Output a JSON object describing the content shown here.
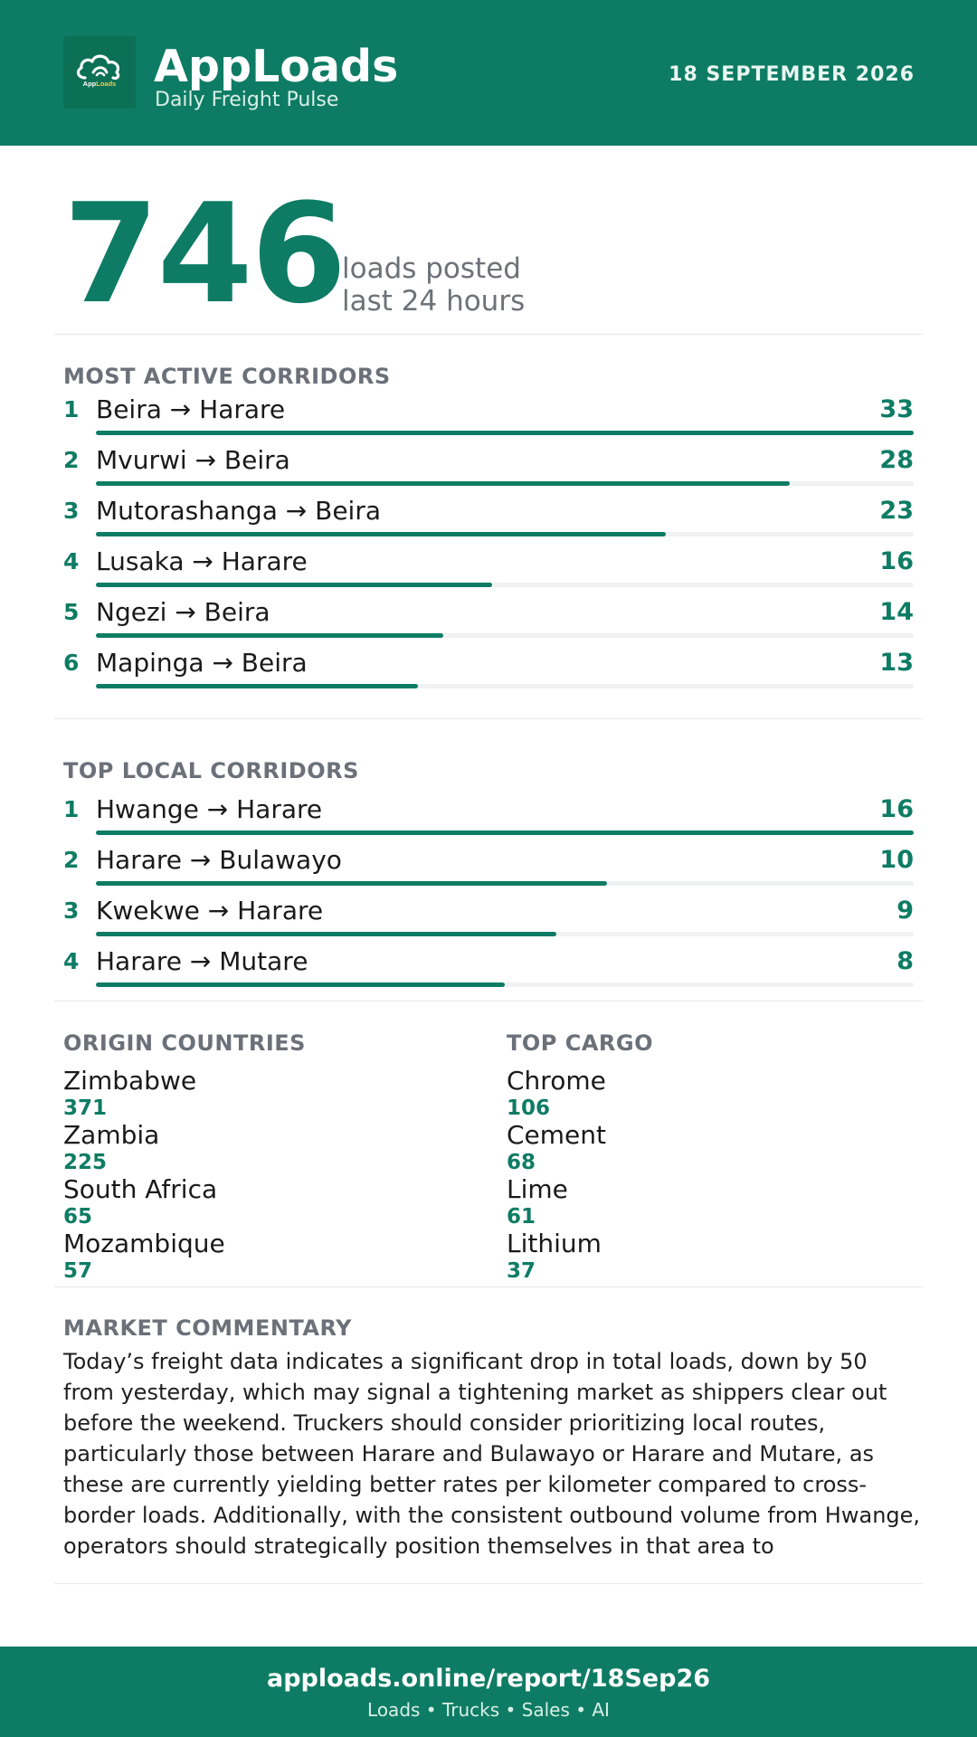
{
  "header": {
    "brand": "AppLoads",
    "tagline": "Daily Freight Pulse",
    "date": "18 SEPTEMBER 2026",
    "logo_text": "AppLoads"
  },
  "hero": {
    "value": "746",
    "label_line1": "loads posted",
    "label_line2": "last 24 hours"
  },
  "most_active": {
    "title": "MOST ACTIVE CORRIDORS",
    "max": 33,
    "items": [
      {
        "rank": "1",
        "route": "Beira → Harare",
        "value": 33
      },
      {
        "rank": "2",
        "route": "Mvurwi → Beira",
        "value": 28
      },
      {
        "rank": "3",
        "route": "Mutorashanga → Beira",
        "value": 23
      },
      {
        "rank": "4",
        "route": "Lusaka → Harare",
        "value": 16
      },
      {
        "rank": "5",
        "route": "Ngezi → Beira",
        "value": 14
      },
      {
        "rank": "6",
        "route": "Mapinga → Beira",
        "value": 13
      }
    ]
  },
  "top_local": {
    "title": "TOP LOCAL CORRIDORS",
    "max": 16,
    "items": [
      {
        "rank": "1",
        "route": "Hwange → Harare",
        "value": 16
      },
      {
        "rank": "2",
        "route": "Harare → Bulawayo",
        "value": 10
      },
      {
        "rank": "3",
        "route": "Kwekwe → Harare",
        "value": 9
      },
      {
        "rank": "4",
        "route": "Harare → Mutare",
        "value": 8
      }
    ]
  },
  "origin_countries": {
    "title": "ORIGIN COUNTRIES",
    "items": [
      {
        "name": "Zimbabwe",
        "value": "371"
      },
      {
        "name": "Zambia",
        "value": "225"
      },
      {
        "name": "South Africa",
        "value": "65"
      },
      {
        "name": "Mozambique",
        "value": "57"
      }
    ]
  },
  "top_cargo": {
    "title": "TOP CARGO",
    "items": [
      {
        "name": "Chrome",
        "value": "106"
      },
      {
        "name": "Cement",
        "value": "68"
      },
      {
        "name": "Lime",
        "value": "61"
      },
      {
        "name": "Lithium",
        "value": "37"
      }
    ]
  },
  "commentary": {
    "title": "MARKET COMMENTARY",
    "text": "Today’s freight data indicates a significant drop in total loads, down by 50 from yesterday, which may signal a tightening market as shippers clear out before the weekend. Truckers should consider prioritizing local routes, particularly those between Harare and Bulawayo or Harare and Mutare, as these are currently yielding better rates per kilometer compared to cross-border loads. Additionally, with the consistent outbound volume from Hwange, operators should strategically position themselves in that area to"
  },
  "footer": {
    "url": "apploads.online/report/18Sep26",
    "sub": "Loads • Trucks • Sales • AI"
  },
  "colors": {
    "brand_green": "#0e7c64",
    "muted_gray": "#6b7079",
    "track": "#f0f1f2"
  }
}
